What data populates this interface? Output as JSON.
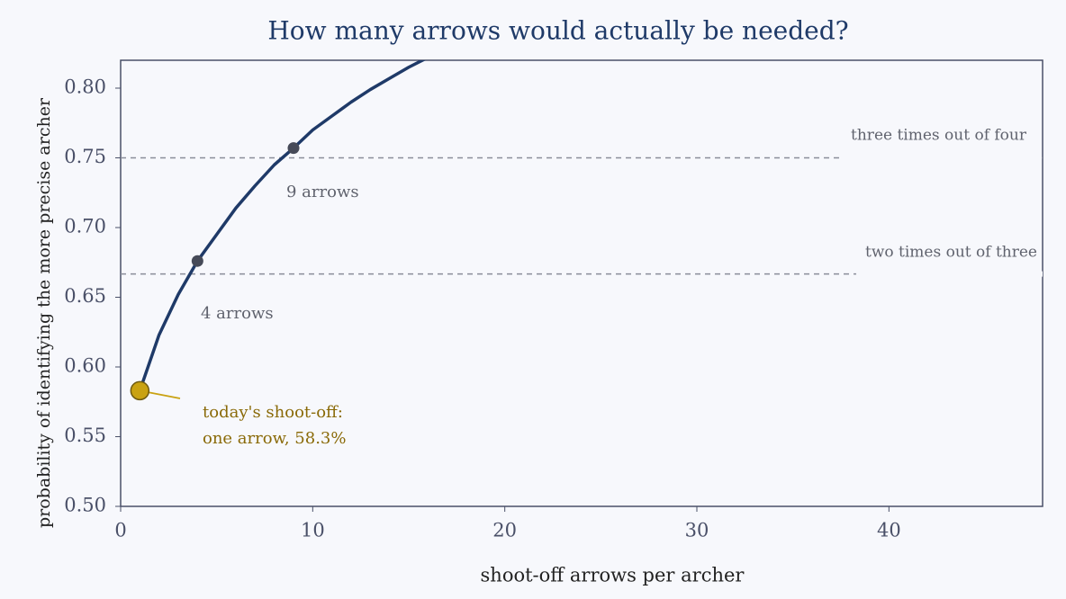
{
  "chart_data": {
    "type": "line",
    "title": "How many arrows would actually be needed?",
    "xlabel": "shoot-off arrows per archer",
    "ylabel": "probability of identifying the more precise archer",
    "x": [
      1,
      2,
      3,
      4,
      5,
      6,
      7,
      8,
      9,
      10,
      11,
      12,
      13,
      14,
      15,
      16
    ],
    "values": [
      0.583,
      0.623,
      0.652,
      0.676,
      0.695,
      0.714,
      0.73,
      0.745,
      0.757,
      0.77,
      0.78,
      0.79,
      0.799,
      0.807,
      0.815,
      0.822
    ],
    "color": "#1f3a68",
    "xlim": [
      0,
      48
    ],
    "ylim": [
      0.5,
      0.82
    ],
    "xticks": [
      0,
      10,
      20,
      30,
      40
    ],
    "yticks": [
      {
        "value": 0.5,
        "label": "0.50"
      },
      {
        "value": 0.55,
        "label": "0.55"
      },
      {
        "value": 0.6,
        "label": "0.60"
      },
      {
        "value": 0.65,
        "label": "0.65"
      },
      {
        "value": 0.7,
        "label": "0.70"
      },
      {
        "value": 0.75,
        "label": "0.75"
      },
      {
        "value": 0.8,
        "label": "0.80"
      }
    ],
    "hlines": [
      {
        "value": 0.75,
        "label": "three times out of four"
      },
      {
        "value": 0.6667,
        "label": "two times out of three"
      }
    ],
    "highlights": [
      {
        "x": 4,
        "value": 0.676,
        "label": "4 arrows"
      },
      {
        "x": 9,
        "value": 0.757,
        "label": "9 arrows"
      }
    ],
    "callout": {
      "x": 1,
      "value": 0.583,
      "lines": [
        "today's shoot-off:",
        "one arrow, 58.3%"
      ],
      "color": "#c9a212"
    }
  }
}
